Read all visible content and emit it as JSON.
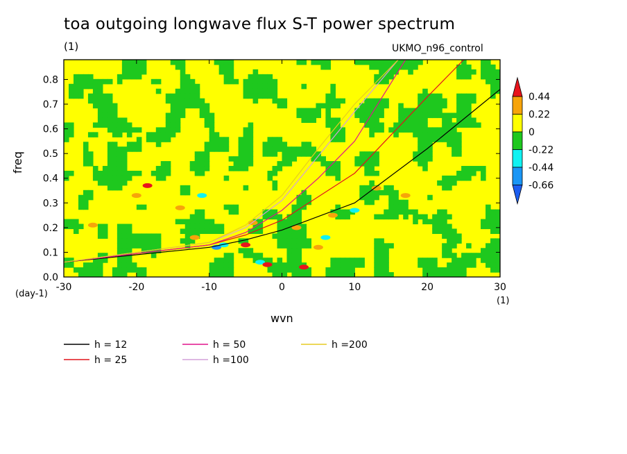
{
  "chart_data": {
    "type": "heatmap",
    "title": "toa outgoing longwave flux S-T power spectrum",
    "units_label": "(1)",
    "dataset_label": "UKMO_n96_control",
    "xlabel": "wvn",
    "ylabel": "freq",
    "x_units_left": "(day-1)",
    "x_units_right": "(1)",
    "xlim": [
      -30,
      30
    ],
    "ylim": [
      0,
      0.88
    ],
    "x_ticks": [
      "-30",
      "-20",
      "-10",
      "0",
      "10",
      "20",
      "30"
    ],
    "y_ticks": [
      "0.0",
      "0.1",
      "0.2",
      "0.3",
      "0.4",
      "0.5",
      "0.6",
      "0.7",
      "0.8"
    ],
    "x_tick_values": [
      -30,
      -20,
      -10,
      0,
      10,
      20,
      30
    ],
    "y_tick_values": [
      0,
      0.1,
      0.2,
      0.3,
      0.4,
      0.5,
      0.6,
      0.7,
      0.8
    ],
    "colorbar": {
      "levels": [
        "0.44",
        "0.22",
        "0",
        "-0.22",
        "-0.44",
        "-0.66"
      ],
      "colors": [
        "#e8141c",
        "#f7a40a",
        "#ffff00",
        "#1ec81e",
        "#10f2f2",
        "#1a96f5",
        "#1c5ef0"
      ]
    },
    "dispersion_curves": [
      {
        "name": "h = 12",
        "color": "#000000",
        "x": [
          -30,
          -10,
          -5,
          0,
          10,
          20,
          30
        ],
        "y": [
          0.06,
          0.12,
          0.15,
          0.19,
          0.3,
          0.52,
          0.76
        ]
      },
      {
        "name": "h = 25",
        "color": "#e0141c",
        "x": [
          -30,
          -10,
          -5,
          0,
          10,
          20,
          25
        ],
        "y": [
          0.06,
          0.13,
          0.17,
          0.23,
          0.42,
          0.73,
          0.88
        ]
      },
      {
        "name": "h = 50",
        "color": "#e0128c",
        "x": [
          -30,
          -10,
          -5,
          0,
          5,
          10,
          17
        ],
        "y": [
          0.06,
          0.13,
          0.18,
          0.27,
          0.4,
          0.55,
          0.88
        ]
      },
      {
        "name": "h =100",
        "color": "#d4a0d8",
        "x": [
          -30,
          -10,
          -5,
          0,
          5,
          10,
          16
        ],
        "y": [
          0.06,
          0.14,
          0.2,
          0.31,
          0.49,
          0.67,
          0.88
        ]
      },
      {
        "name": "h =200",
        "color": "#e6cc20",
        "x": [
          -30,
          -10,
          -5,
          0,
          5,
          10,
          16
        ],
        "y": [
          0.06,
          0.14,
          0.21,
          0.33,
          0.52,
          0.7,
          0.88
        ]
      }
    ],
    "grid": false,
    "legend_position": "bottom"
  }
}
